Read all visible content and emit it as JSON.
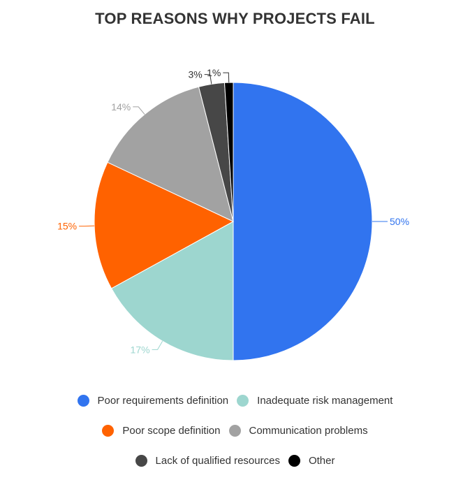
{
  "chart_data": {
    "type": "pie",
    "title": "TOP REASONS WHY PROJECTS FAIL",
    "slices": [
      {
        "name": "Poor requirements definition",
        "value": 50,
        "label": "50%",
        "color": "#3174ef"
      },
      {
        "name": "Inadequate risk management",
        "value": 17,
        "label": "17%",
        "color": "#9dd6cf"
      },
      {
        "name": "Poor scope definition",
        "value": 15,
        "label": "15%",
        "color": "#ff6200"
      },
      {
        "name": "Communication problems",
        "value": 14,
        "label": "14%",
        "color": "#a2a2a2"
      },
      {
        "name": "Lack of qualified resources",
        "value": 3,
        "label": "3%",
        "color": "#474747"
      },
      {
        "name": "Other",
        "value": 1,
        "label": "1%",
        "color": "#000000"
      }
    ],
    "legend_position": "bottom"
  }
}
